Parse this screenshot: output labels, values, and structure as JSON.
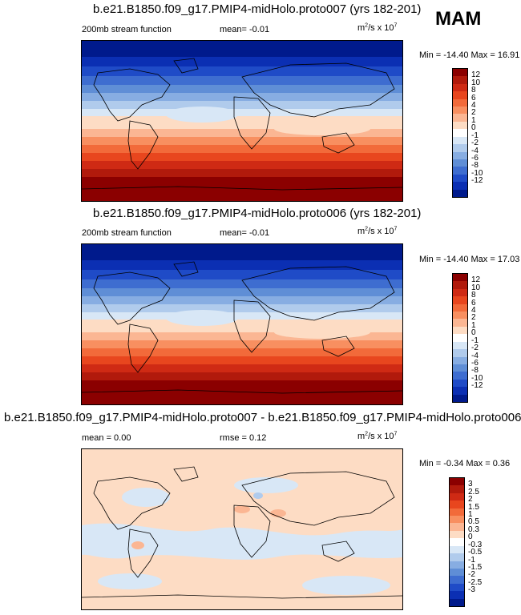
{
  "season": "MAM",
  "panels": [
    {
      "title": "b.e21.B1850.f09_g17.PMIP4-midHolo.proto007 (yrs 182-201)",
      "left_label": "200mb stream function",
      "center_label": "mean=  -0.01",
      "units": "m²/s x 10⁷",
      "minmax": "Min = -14.40 Max =  16.91",
      "colorbar_labels": [
        "12",
        "10",
        "8",
        "6",
        "4",
        "2",
        "1",
        "0",
        "-1",
        "-2",
        "-4",
        "-6",
        "-8",
        "-10",
        "-12"
      ],
      "colorbar_colors": [
        "#8b0000",
        "#b11a0c",
        "#cf2a14",
        "#e8461e",
        "#f26a3a",
        "#f88f60",
        "#fbb693",
        "#fddcc4",
        "#ffffff",
        "#d8e7f6",
        "#b0cbec",
        "#87ade2",
        "#5f8ed6",
        "#3e6dd0",
        "#1f4bc7",
        "#0b2fb3",
        "#001a8c"
      ]
    },
    {
      "title": "b.e21.B1850.f09_g17.PMIP4-midHolo.proto006 (yrs 182-201)",
      "left_label": "200mb stream function",
      "center_label": "mean=  -0.01",
      "units": "m²/s x 10⁷",
      "minmax": "Min = -14.40 Max =  17.03",
      "colorbar_labels": [
        "12",
        "10",
        "8",
        "6",
        "4",
        "2",
        "1",
        "0",
        "-1",
        "-2",
        "-4",
        "-6",
        "-8",
        "-10",
        "-12"
      ],
      "colorbar_colors": [
        "#8b0000",
        "#b11a0c",
        "#cf2a14",
        "#e8461e",
        "#f26a3a",
        "#f88f60",
        "#fbb693",
        "#fddcc4",
        "#ffffff",
        "#d8e7f6",
        "#b0cbec",
        "#87ade2",
        "#5f8ed6",
        "#3e6dd0",
        "#1f4bc7",
        "#0b2fb3",
        "#001a8c"
      ]
    },
    {
      "title": "b.e21.B1850.f09_g17.PMIP4-midHolo.proto007 - b.e21.B1850.f09_g17.PMIP4-midHolo.proto006",
      "left_label": "mean =   0.00",
      "center_label": "rmse =   0.12",
      "units": "m²/s x 10⁷",
      "minmax": "Min = -0.34 Max =  0.36",
      "colorbar_labels": [
        "3",
        "2.5",
        "2",
        "1.5",
        "1",
        "0.5",
        "0.3",
        "0",
        "-0.3",
        "-0.5",
        "-1",
        "-1.5",
        "-2",
        "-2.5",
        "-3"
      ],
      "colorbar_colors": [
        "#8b0000",
        "#b11a0c",
        "#cf2a14",
        "#e8461e",
        "#f26a3a",
        "#f88f60",
        "#fbb693",
        "#fddcc4",
        "#ffffff",
        "#d8e7f6",
        "#b0cbec",
        "#87ade2",
        "#5f8ed6",
        "#3e6dd0",
        "#1f4bc7",
        "#0b2fb3",
        "#001a8c"
      ]
    }
  ]
}
